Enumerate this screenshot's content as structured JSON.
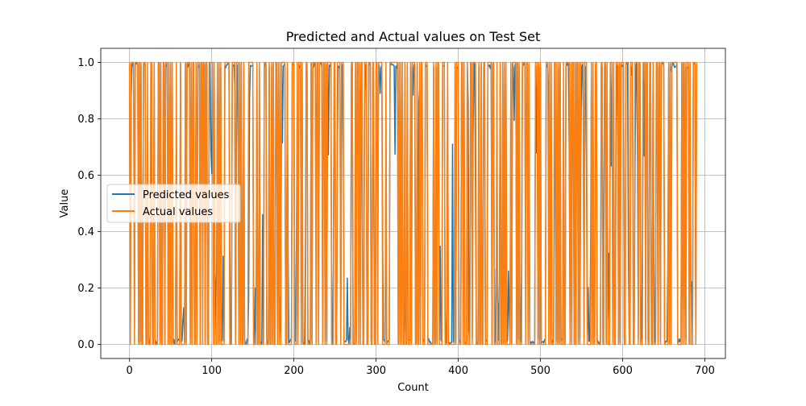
{
  "chart_data": {
    "type": "line",
    "title": "Predicted and Actual values on Test Set",
    "xlabel": "Count",
    "ylabel": "Value",
    "xlim": [
      -35,
      725
    ],
    "ylim": [
      -0.05,
      1.05
    ],
    "xticks": [
      0,
      100,
      200,
      300,
      400,
      500,
      600,
      700
    ],
    "yticks": [
      0.0,
      0.2,
      0.4,
      0.6,
      0.8,
      1.0
    ],
    "xtick_labels": [
      "0",
      "100",
      "200",
      "300",
      "400",
      "500",
      "600",
      "700"
    ],
    "ytick_labels": [
      "0.0",
      "0.2",
      "0.4",
      "0.6",
      "0.8",
      "1.0"
    ],
    "grid": true,
    "legend_position": "center-left",
    "n_points": 691,
    "series": [
      {
        "name": "Predicted values",
        "color": "#1f77b4",
        "values_note_free": true,
        "notable_values": [
          {
            "x": 48,
            "y": 0.88
          },
          {
            "x": 66,
            "y": 0.13
          },
          {
            "x": 128,
            "y": 0.92
          },
          {
            "x": 145,
            "y": 0.17
          },
          {
            "x": 162,
            "y": 0.46
          },
          {
            "x": 183,
            "y": 0.17
          },
          {
            "x": 203,
            "y": 0.34
          },
          {
            "x": 250,
            "y": 0.82
          },
          {
            "x": 268,
            "y": 0.06
          },
          {
            "x": 281,
            "y": 0.6
          },
          {
            "x": 335,
            "y": 0.25
          },
          {
            "x": 352,
            "y": 0.86
          },
          {
            "x": 393,
            "y": 0.71
          },
          {
            "x": 412,
            "y": 0.86
          },
          {
            "x": 421,
            "y": 0.49
          },
          {
            "x": 447,
            "y": 0.17
          },
          {
            "x": 452,
            "y": 0.24
          },
          {
            "x": 464,
            "y": 0.98
          },
          {
            "x": 510,
            "y": 0.88
          },
          {
            "x": 540,
            "y": 0.83
          },
          {
            "x": 547,
            "y": 0.87
          },
          {
            "x": 577,
            "y": 0.4
          },
          {
            "x": 607,
            "y": 0.29
          },
          {
            "x": 618,
            "y": 0.67
          },
          {
            "x": 655,
            "y": 0.28
          },
          {
            "x": 659,
            "y": 0.97
          }
        ]
      },
      {
        "name": "Actual values",
        "color": "#ff7f0e",
        "values_binary": [
          0,
          1
        ]
      }
    ]
  }
}
